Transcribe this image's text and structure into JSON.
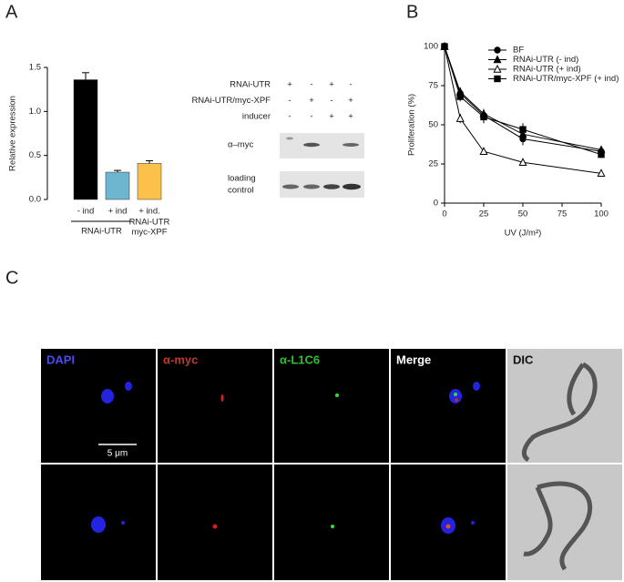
{
  "panels": {
    "a": "A",
    "b": "B",
    "c": "C"
  },
  "chart_data": [
    {
      "type": "bar",
      "ylabel": "Relative expression",
      "categories": [
        "- ind",
        "+ ind",
        "+ ind."
      ],
      "values": [
        1.36,
        0.31,
        0.41
      ],
      "errors": [
        0.08,
        0.02,
        0.03
      ],
      "colors": [
        "#000000",
        "#6cb6cf",
        "#fbc14b"
      ],
      "groups": [
        {
          "lines": [
            "RNAi-UTR"
          ],
          "span": [
            0,
            1
          ]
        },
        {
          "lines": [
            "RNAi-UTR",
            "myc-XPF"
          ],
          "span": [
            2,
            2
          ]
        }
      ],
      "ylim": [
        0,
        1.5
      ],
      "yticks": [
        {
          "value": 0,
          "label": "0.0"
        },
        0.5,
        {
          "value": 1,
          "label": "1.0"
        },
        1.5
      ]
    },
    {
      "type": "line",
      "xlabel": "UV (J/m²)",
      "ylabel": "Proliferation (%)",
      "x": [
        0,
        10,
        25,
        50,
        100
      ],
      "series": [
        {
          "name": "BF",
          "marker": "circle",
          "color": "#000000",
          "values": [
            100,
            70,
            56,
            41,
            33
          ],
          "errors": [
            0,
            3,
            4,
            4,
            3
          ]
        },
        {
          "name": "RNAi-UTR (- ind)",
          "marker": "triangle",
          "color": "#000000",
          "values": [
            100,
            71,
            57,
            44,
            34
          ],
          "errors": [
            0,
            3,
            3,
            3,
            2
          ]
        },
        {
          "name": "RNAi-UTR (+ ind)",
          "marker": "triangle-open",
          "color": "#000000",
          "values": [
            100,
            54,
            33,
            26,
            19
          ],
          "errors": [
            0,
            3,
            2,
            2,
            1
          ]
        },
        {
          "name": "RNAi-UTR/myc-XPF (+ ind)",
          "marker": "square",
          "color": "#000000",
          "values": [
            100,
            68,
            55,
            47,
            31
          ],
          "errors": [
            0,
            3,
            4,
            4,
            2
          ]
        }
      ],
      "xlim": [
        0,
        100
      ],
      "xticks": [
        0,
        25,
        50,
        75,
        100
      ],
      "ylim": [
        0,
        100
      ],
      "yticks": [
        0,
        25,
        50,
        75,
        100
      ]
    }
  ],
  "blot": {
    "rows": [
      {
        "label": "RNAi-UTR",
        "marks": [
          "+",
          "-",
          "+",
          "-"
        ]
      },
      {
        "label": "RNAi-UTR/myc-XPF",
        "marks": [
          "-",
          "+",
          "-",
          "+"
        ]
      },
      {
        "label": "inducer",
        "marks": [
          "-",
          "-",
          "+",
          "+"
        ]
      }
    ],
    "bands": [
      {
        "lines": [
          "α–myc"
        ]
      },
      {
        "lines": [
          "loading",
          "control"
        ]
      }
    ]
  },
  "microscopy": {
    "columns": [
      {
        "label": "DAPI",
        "color": "#4a4cf0"
      },
      {
        "label": "α-myc",
        "color": "#c0392b"
      },
      {
        "label": "α-L1C6",
        "color": "#2fc02f"
      },
      {
        "label": "Merge",
        "color": "#ffffff"
      },
      {
        "label": "DIC",
        "color": "#111111"
      }
    ],
    "scale_bar": "5 μm"
  }
}
